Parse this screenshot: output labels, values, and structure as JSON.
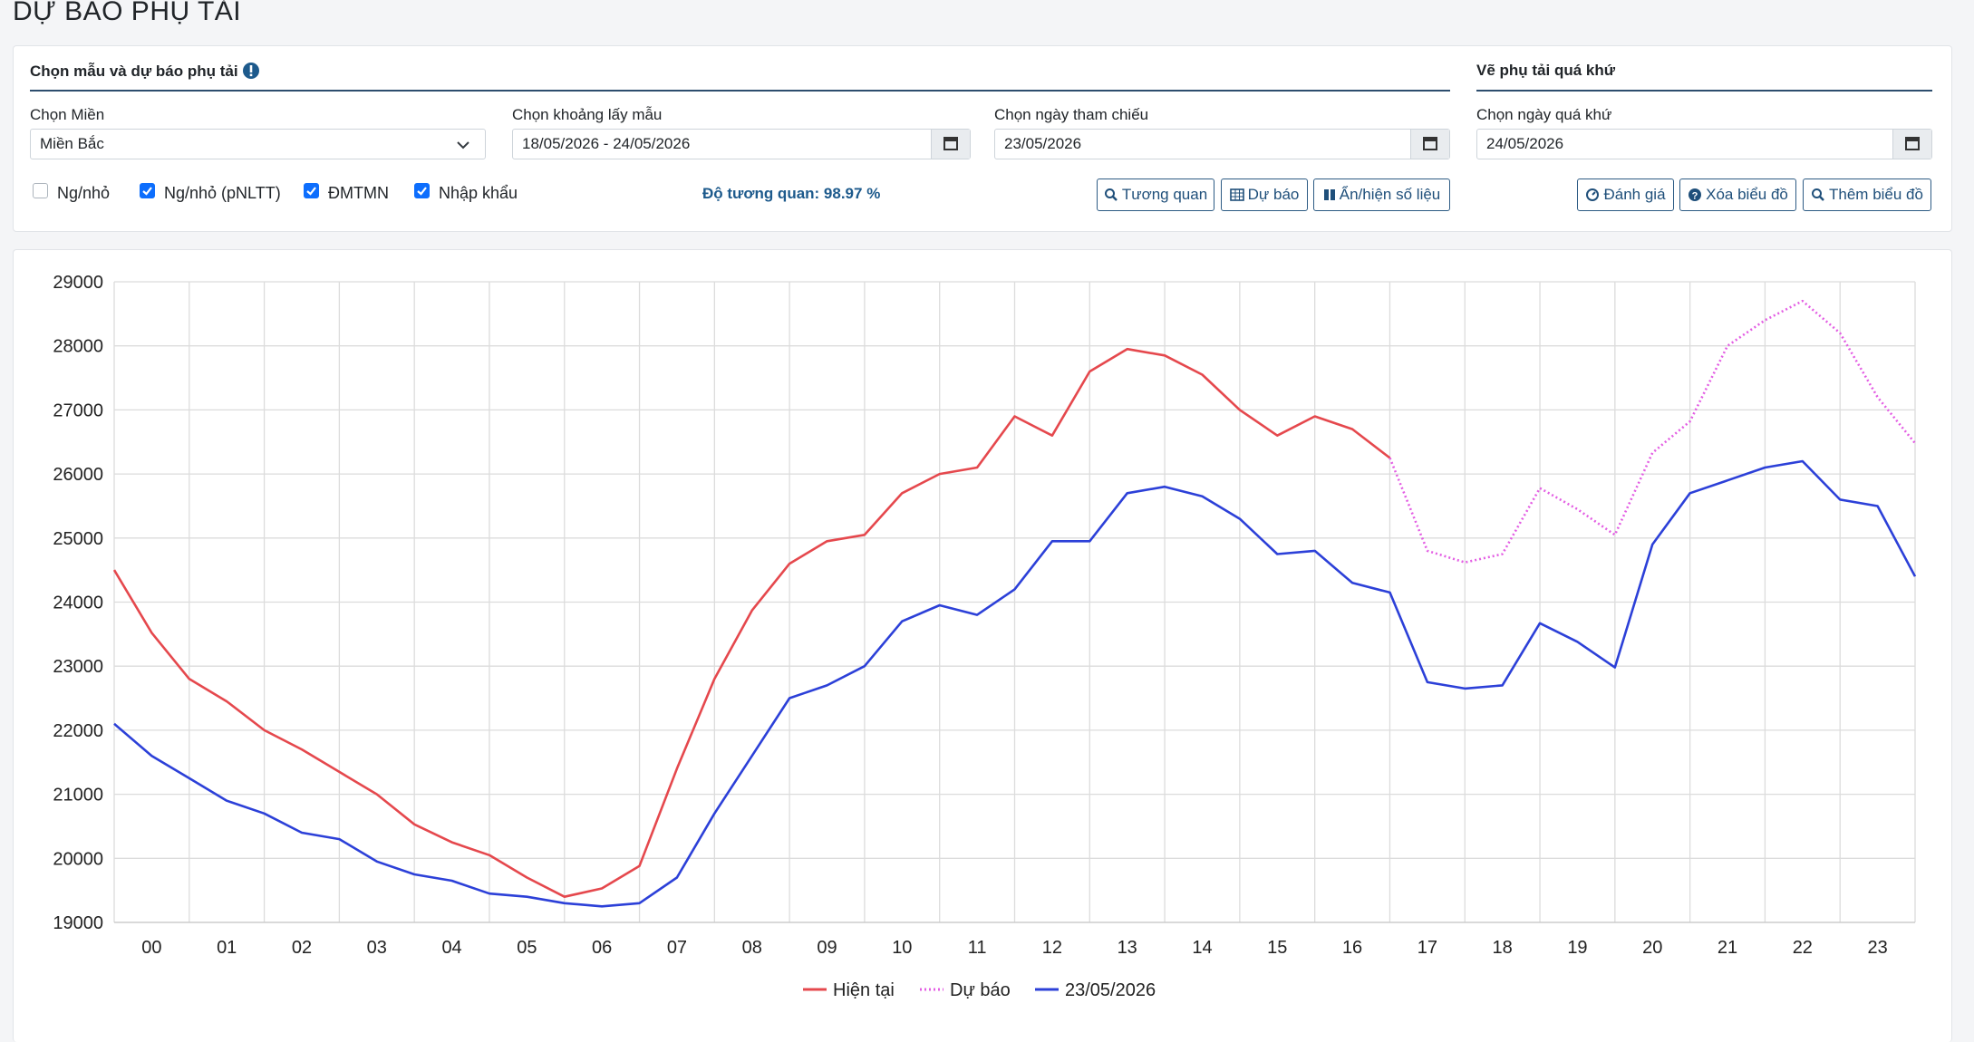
{
  "header": {
    "title": "DỰ BÁO PHỤ TẢI"
  },
  "form": {
    "section_title": "Chọn mẫu và dự báo phụ tải",
    "history_title": "Vẽ phụ tải quá khứ",
    "fields": [
      {
        "label": "Chọn Miền",
        "value": "Miền Bắc"
      },
      {
        "label": "Chọn khoảng lấy mẫu",
        "value": "18/05/2026 - 24/05/2026"
      },
      {
        "label": "Chọn ngày tham chiếu",
        "value": "23/05/2026"
      },
      {
        "label": "Chọn ngày quá khứ",
        "value": "24/05/2026"
      }
    ],
    "checkboxes": [
      {
        "label": "Ng/nhỏ",
        "checked": false
      },
      {
        "label": "Ng/nhỏ (pNLTT)",
        "checked": true
      },
      {
        "label": "ĐMTMN",
        "checked": true
      },
      {
        "label": "Nhập khẩu",
        "checked": true
      }
    ],
    "correlation": "Độ tương quan: 98.97 %",
    "buttons": [
      "Tương quan",
      "Dự báo",
      "Ẩn/hiện số liệu",
      "Đánh giá",
      "Xóa biểu đồ",
      "Thêm biểu đồ"
    ]
  },
  "chart_data": {
    "type": "line",
    "x": [
      0,
      0.5,
      1,
      1.5,
      2,
      2.5,
      3,
      3.5,
      4,
      4.5,
      5,
      5.5,
      6,
      6.5,
      7,
      7.5,
      8,
      8.5,
      9,
      9.5,
      10,
      10.5,
      11,
      11.5,
      12,
      12.5,
      13,
      13.5,
      14,
      14.5,
      15,
      15.5,
      16,
      16.5,
      17,
      17.5,
      18,
      18.5,
      19,
      19.5,
      20,
      20.5,
      21,
      21.5,
      22,
      22.5,
      23,
      23.5,
      24
    ],
    "xlim": [
      0,
      24
    ],
    "xticks": [
      {
        "value": 0,
        "label": "00"
      },
      {
        "value": 1,
        "label": "01"
      },
      {
        "value": 2,
        "label": "02"
      },
      {
        "value": 3,
        "label": "03"
      },
      {
        "value": 4,
        "label": "04"
      },
      {
        "value": 5,
        "label": "05"
      },
      {
        "value": 6,
        "label": "06"
      },
      {
        "value": 7,
        "label": "07"
      },
      {
        "value": 8,
        "label": "08"
      },
      {
        "value": 9,
        "label": "09"
      },
      {
        "value": 10,
        "label": "10"
      },
      {
        "value": 11,
        "label": "11"
      },
      {
        "value": 12,
        "label": "12"
      },
      {
        "value": 13,
        "label": "13"
      },
      {
        "value": 14,
        "label": "14"
      },
      {
        "value": 15,
        "label": "15"
      },
      {
        "value": 16,
        "label": "16"
      },
      {
        "value": 17,
        "label": "17"
      },
      {
        "value": 18,
        "label": "18"
      },
      {
        "value": 19,
        "label": "19"
      },
      {
        "value": 20,
        "label": "20"
      },
      {
        "value": 21,
        "label": "21"
      },
      {
        "value": 22,
        "label": "22"
      },
      {
        "value": 23,
        "label": "23"
      }
    ],
    "ylim": [
      19000,
      29000
    ],
    "yticks": [
      19000,
      20000,
      21000,
      22000,
      23000,
      24000,
      25000,
      26000,
      27000,
      28000,
      29000
    ],
    "grid": true,
    "legend": "bottom",
    "series": [
      {
        "name": "Hiện tại",
        "color": "#e5484d",
        "line_style": "solid",
        "values": [
          24500,
          23520,
          22800,
          22450,
          22000,
          21700,
          21350,
          21000,
          20530,
          20250,
          20050,
          19700,
          19400,
          19530,
          19880,
          21400,
          22800,
          23870,
          24600,
          24950,
          25050,
          25700,
          26000,
          26100,
          26900,
          26600,
          27600,
          27950,
          27850,
          27550,
          27000,
          26600,
          26900,
          26700,
          26250,
          null,
          null,
          null,
          null,
          null,
          null,
          null,
          null,
          null,
          null,
          null,
          null,
          null,
          null
        ]
      },
      {
        "name": "Dự báo",
        "color": "#e35ee3",
        "line_style": "dotted",
        "values": [
          null,
          null,
          null,
          null,
          null,
          null,
          null,
          null,
          null,
          null,
          null,
          null,
          null,
          null,
          null,
          null,
          null,
          null,
          null,
          null,
          null,
          null,
          null,
          null,
          null,
          null,
          null,
          null,
          null,
          null,
          null,
          null,
          null,
          null,
          26250,
          24800,
          24620,
          24750,
          25780,
          25450,
          25050,
          26330,
          26820,
          28000,
          28400,
          28700,
          28200,
          27200,
          26480
        ]
      },
      {
        "name": "23/05/2026",
        "color": "#2c40d8",
        "line_style": "solid",
        "values": [
          22100,
          21600,
          21250,
          20900,
          20700,
          20400,
          20300,
          19950,
          19750,
          19650,
          19450,
          19400,
          19300,
          19250,
          19300,
          19700,
          20700,
          21600,
          22500,
          22700,
          23000,
          23700,
          23950,
          23800,
          24200,
          24950,
          24950,
          25700,
          25800,
          25650,
          25300,
          24750,
          24800,
          24300,
          24150,
          22750,
          22650,
          22700,
          23670,
          23380,
          22980,
          24900,
          25700,
          25900,
          26100,
          26200,
          25600,
          25500,
          24400
        ]
      }
    ]
  }
}
